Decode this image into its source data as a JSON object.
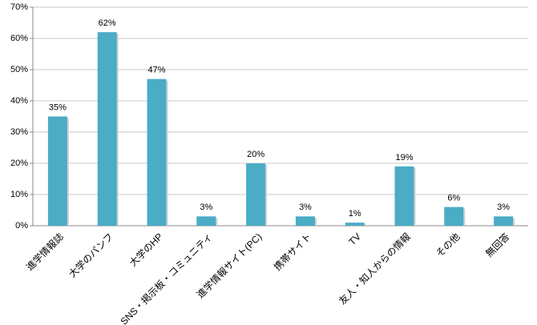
{
  "chart_data": {
    "type": "bar",
    "categories": [
      "進学情報誌",
      "大学のパンフ",
      "大学のHP",
      "SNS・掲示板・コミュニティ",
      "進学情報サイト(PC)",
      "携帯サイト",
      "TV",
      "友人・知人からの情報",
      "その他",
      "無回答"
    ],
    "values": [
      35,
      62,
      47,
      3,
      20,
      3,
      1,
      19,
      6,
      3
    ],
    "value_labels": [
      "35%",
      "62%",
      "47%",
      "3%",
      "20%",
      "3%",
      "1%",
      "19%",
      "6%",
      "3%"
    ],
    "color": "#4bacc6",
    "ylim": [
      0,
      70
    ],
    "yticks": [
      {
        "value": 0,
        "label": "0%"
      },
      {
        "value": 10,
        "label": "10%"
      },
      {
        "value": 20,
        "label": "20%"
      },
      {
        "value": 30,
        "label": "30%"
      },
      {
        "value": 40,
        "label": "40%"
      },
      {
        "value": 50,
        "label": "50%"
      },
      {
        "value": 60,
        "label": "60%"
      },
      {
        "value": 70,
        "label": "70%"
      }
    ],
    "grid": true
  }
}
